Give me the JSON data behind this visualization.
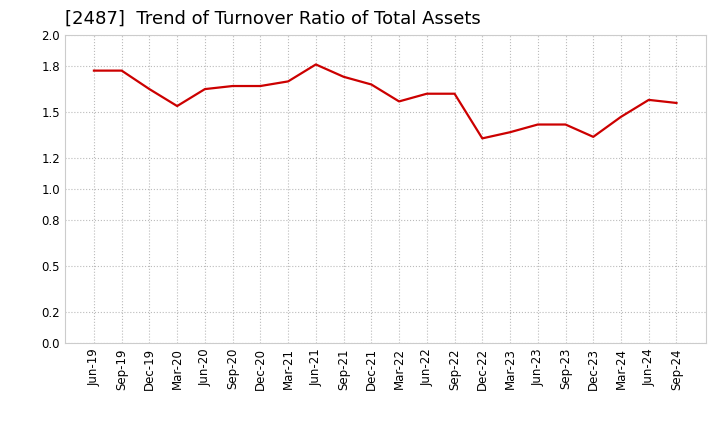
{
  "title": "[2487]  Trend of Turnover Ratio of Total Assets",
  "x_labels": [
    "Jun-19",
    "Sep-19",
    "Dec-19",
    "Mar-20",
    "Jun-20",
    "Sep-20",
    "Dec-20",
    "Mar-21",
    "Jun-21",
    "Sep-21",
    "Dec-21",
    "Mar-22",
    "Jun-22",
    "Sep-22",
    "Dec-22",
    "Mar-23",
    "Jun-23",
    "Sep-23",
    "Dec-23",
    "Mar-24",
    "Jun-24",
    "Sep-24"
  ],
  "values": [
    1.77,
    1.77,
    1.65,
    1.54,
    1.65,
    1.67,
    1.67,
    1.7,
    1.81,
    1.73,
    1.68,
    1.57,
    1.62,
    1.62,
    1.33,
    1.37,
    1.42,
    1.42,
    1.34,
    1.47,
    1.58,
    1.56
  ],
  "line_color": "#cc0000",
  "line_width": 1.6,
  "ylim": [
    0.0,
    2.0
  ],
  "yticks": [
    0.0,
    0.2,
    0.5,
    0.8,
    1.0,
    1.2,
    1.5,
    1.8,
    2.0
  ],
  "grid_color": "#bbbbbb",
  "background_color": "#ffffff",
  "title_fontsize": 13,
  "tick_fontsize": 8.5
}
